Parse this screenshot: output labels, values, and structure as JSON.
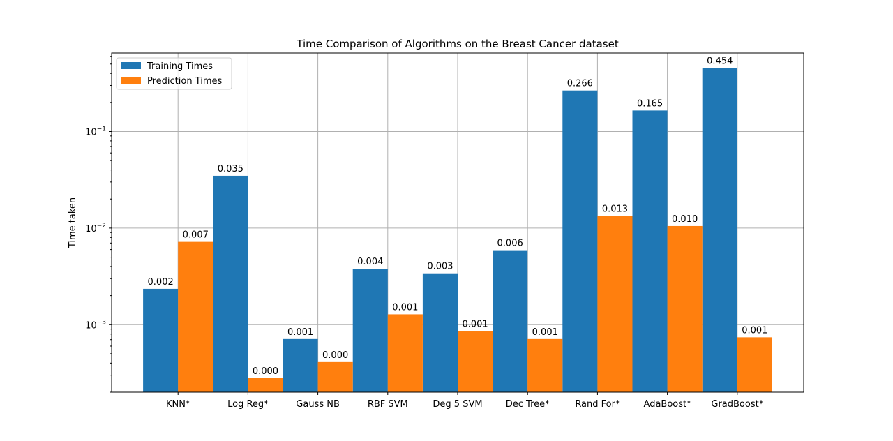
{
  "chart_data": {
    "type": "bar",
    "title": "Time Comparison of Algorithms on the Breast Cancer dataset",
    "xlabel": "",
    "ylabel": "Time taken",
    "yscale": "log",
    "ylim": [
      0.0002,
      0.65
    ],
    "ytick_values": [
      0.001,
      0.01,
      0.1
    ],
    "ytick_labels": [
      {
        "base": "10",
        "exp": "−3"
      },
      {
        "base": "10",
        "exp": "−2"
      },
      {
        "base": "10",
        "exp": "−1"
      }
    ],
    "grid": true,
    "legend_position": "top-left",
    "categories": [
      "KNN*",
      "Log Reg*",
      "Gauss NB",
      "RBF SVM",
      "Deg 5 SVM",
      "Dec Tree*",
      "Rand For*",
      "AdaBoost*",
      "GradBoost*"
    ],
    "series": [
      {
        "name": "Training Times",
        "color": "#1f77b4",
        "values": [
          0.00235,
          0.0348,
          0.00071,
          0.0038,
          0.0034,
          0.0059,
          0.266,
          0.165,
          0.454
        ],
        "labels": [
          "0.002",
          "0.035",
          "0.001",
          "0.004",
          "0.003",
          "0.006",
          "0.266",
          "0.165",
          "0.454"
        ]
      },
      {
        "name": "Prediction Times",
        "color": "#ff7f0e",
        "values": [
          0.0072,
          0.00028,
          0.00041,
          0.00128,
          0.00086,
          0.00071,
          0.0133,
          0.0105,
          0.00074
        ],
        "labels": [
          "0.007",
          "0.000",
          "0.000",
          "0.001",
          "0.001",
          "0.001",
          "0.013",
          "0.010",
          "0.001"
        ]
      }
    ]
  }
}
